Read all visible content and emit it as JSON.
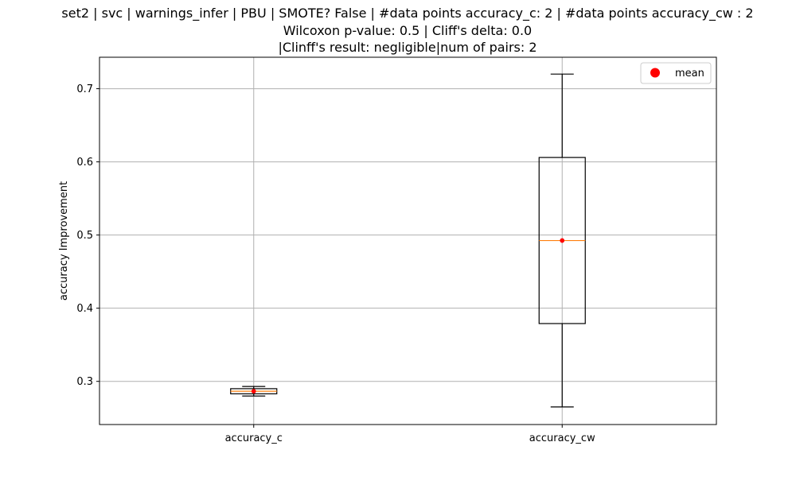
{
  "chart_data": {
    "type": "box",
    "title_lines": [
      "set2 | svc | warnings_infer | PBU | SMOTE? False | #data points accuracy_c: 2 | #data points accuracy_cw : 2",
      "Wilcoxon p-value: 0.5 | Cliff's delta: 0.0",
      "|Clinff's result: negligible|num of pairs: 2"
    ],
    "xlabel": "",
    "ylabel": "accuracy Improvement",
    "ylim": [
      0.241,
      0.743
    ],
    "yticks": [
      0.3,
      0.4,
      0.5,
      0.6,
      0.7
    ],
    "ytick_labels": [
      "0.3",
      "0.4",
      "0.5",
      "0.6",
      "0.7"
    ],
    "grid": true,
    "legend": {
      "position": "top-right",
      "entries": [
        {
          "label": "mean",
          "color": "#ff0000",
          "marker": "circle"
        }
      ]
    },
    "categories": [
      "accuracy_c",
      "accuracy_cw"
    ],
    "boxes": [
      {
        "category": "accuracy_c",
        "whisker_low": 0.28,
        "q1": 0.283,
        "median": 0.2865,
        "q3": 0.29,
        "whisker_high": 0.293,
        "mean": 0.2865
      },
      {
        "category": "accuracy_cw",
        "whisker_low": 0.265,
        "q1": 0.379,
        "median": 0.4925,
        "q3": 0.606,
        "whisker_high": 0.72,
        "mean": 0.4925
      }
    ],
    "colors": {
      "box_edge": "#000000",
      "median": "#ff7f0e",
      "mean": "#ff0000",
      "grid": "#b0b0b0"
    }
  }
}
